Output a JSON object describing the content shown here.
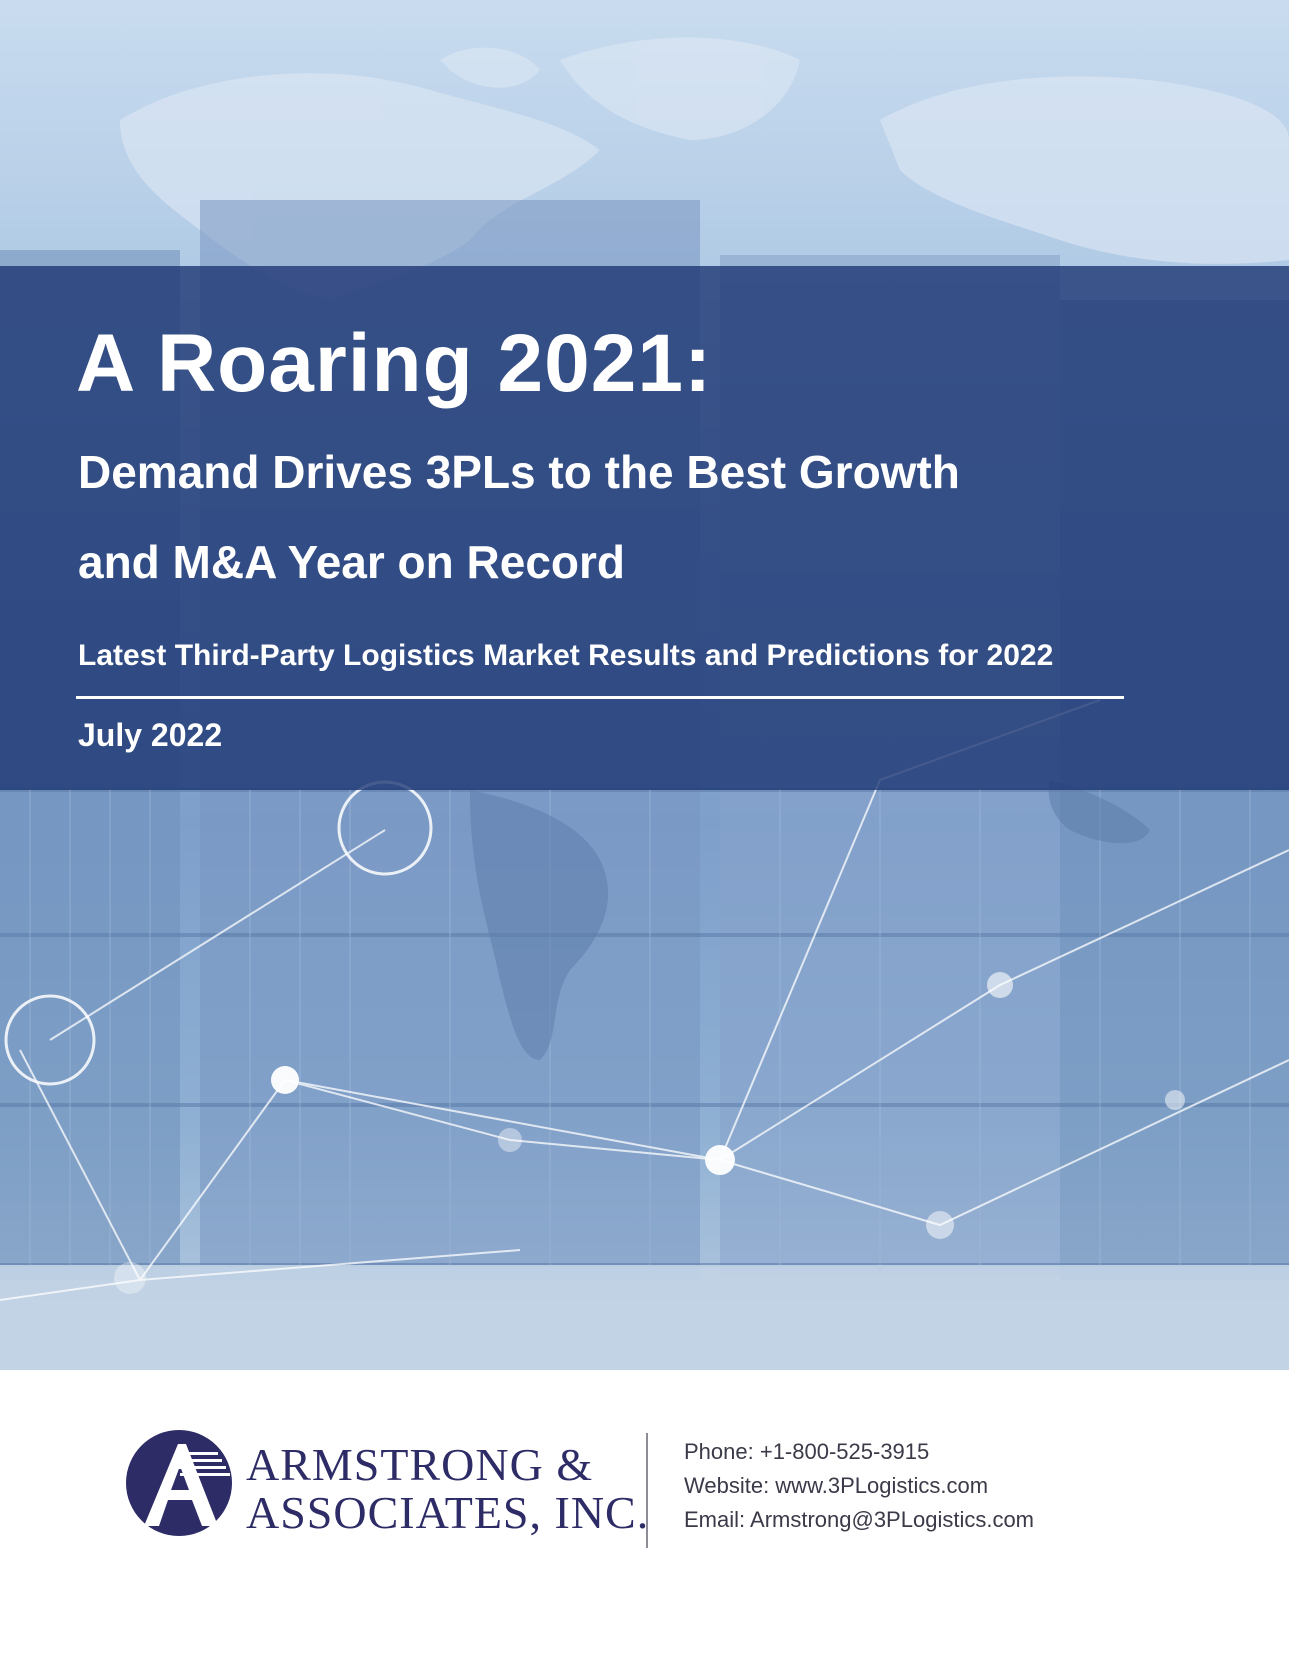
{
  "cover": {
    "title": "A Roaring 2021:",
    "subtitle_line1": "Demand Drives 3PLs to the Best Growth",
    "subtitle_line2": "and M&A Year on Record",
    "tagline": "Latest Third-Party Logistics Market Results and Predictions for 2022",
    "date": "July 2022"
  },
  "company": {
    "name_line1": "ARMSTRONG &",
    "name_line2": "ASSOCIATES, INC.",
    "logo_letter": "A",
    "brand_color": "#2e2c66"
  },
  "contact": {
    "phone": "Phone: +1-800-525-3915",
    "website": "Website: www.3PLogistics.com",
    "email": "Email: Armstrong@3PLogistics.com"
  },
  "colors": {
    "band": "#1e3773",
    "hero_light": "#c9dcef",
    "hero_mid": "#7d9fca"
  },
  "icons": {
    "hero_image": "shipping-containers-world-map-photo",
    "logo": "armstrong-a-logo-icon"
  }
}
